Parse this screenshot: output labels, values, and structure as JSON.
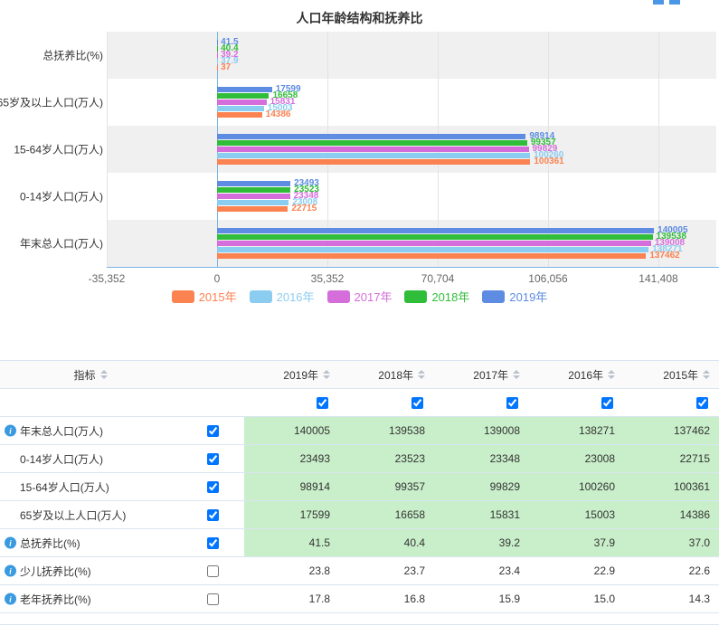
{
  "chart_data": {
    "type": "bar",
    "orientation": "horizontal",
    "title": "人口年龄结构和抚养比",
    "categories": [
      "总抚养比(%)",
      "65岁及以上人口(万人)",
      "15-64岁人口(万人)",
      "0-14岁人口(万人)",
      "年末总人口(万人)"
    ],
    "series": [
      {
        "name": "2015年",
        "color": "#fb8251",
        "values": [
          37,
          14386,
          100361,
          22715,
          137462
        ]
      },
      {
        "name": "2016年",
        "color": "#8bcdf1",
        "values": [
          37.9,
          15003,
          100260,
          23008,
          138271
        ]
      },
      {
        "name": "2017年",
        "color": "#d56edb",
        "values": [
          39.2,
          15831,
          99829,
          23348,
          139008
        ]
      },
      {
        "name": "2018年",
        "color": "#30bd3a",
        "values": [
          40.4,
          16658,
          99357,
          23523,
          139538
        ]
      },
      {
        "name": "2019年",
        "color": "#5d8ce2",
        "values": [
          41.5,
          17599,
          98914,
          23493,
          140005
        ]
      }
    ],
    "xlabel": "",
    "ylabel": "",
    "xlim": [
      -35352,
      141408
    ],
    "xticks": [
      {
        "label": "-35,352",
        "value": -35352
      },
      {
        "label": "0",
        "value": 0
      },
      {
        "label": "35,352",
        "value": 35352
      },
      {
        "label": "70,704",
        "value": 70704
      },
      {
        "label": "106,056",
        "value": 106056
      },
      {
        "label": "141,408",
        "value": 141408
      }
    ],
    "grid": true,
    "legend_position": "bottom"
  },
  "table": {
    "indicator_header": "指标",
    "year_headers": [
      "2019年",
      "2018年",
      "2017年",
      "2016年",
      "2015年"
    ],
    "column_checkboxes": [
      true,
      true,
      true,
      true,
      true
    ],
    "rows": [
      {
        "label": "年末总人口(万人)",
        "info": true,
        "checked": true,
        "values": [
          "140005",
          "139538",
          "139008",
          "138271",
          "137462"
        ]
      },
      {
        "label": "0-14岁人口(万人)",
        "info": false,
        "checked": true,
        "values": [
          "23493",
          "23523",
          "23348",
          "23008",
          "22715"
        ]
      },
      {
        "label": "15-64岁人口(万人)",
        "info": false,
        "checked": true,
        "values": [
          "98914",
          "99357",
          "99829",
          "100260",
          "100361"
        ]
      },
      {
        "label": "65岁及以上人口(万人)",
        "info": false,
        "checked": true,
        "values": [
          "17599",
          "16658",
          "15831",
          "15003",
          "14386"
        ]
      },
      {
        "label": "总抚养比(%)",
        "info": true,
        "checked": true,
        "values": [
          "41.5",
          "40.4",
          "39.2",
          "37.9",
          "37.0"
        ]
      },
      {
        "label": "少儿抚养比(%)",
        "info": true,
        "checked": false,
        "values": [
          "23.8",
          "23.7",
          "23.4",
          "22.9",
          "22.6"
        ]
      },
      {
        "label": "老年抚养比(%)",
        "info": true,
        "checked": false,
        "values": [
          "17.8",
          "16.8",
          "15.9",
          "15.0",
          "14.3"
        ]
      }
    ]
  }
}
